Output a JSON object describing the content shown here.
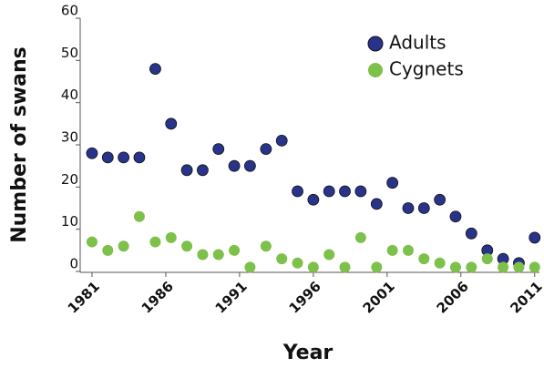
{
  "chart_data": {
    "type": "scatter",
    "x_label": "Year",
    "y_label": "Number of swans",
    "x": [
      1981,
      1982.07,
      1983.14,
      1984.21,
      1985.29,
      1986.36,
      1987.43,
      1988.5,
      1989.57,
      1990.64,
      1991.71,
      1992.79,
      1993.86,
      1994.93,
      1996,
      1997.07,
      1998.14,
      1999.21,
      2000.29,
      2001.36,
      2002.43,
      2003.5,
      2004.57,
      2005.64,
      2006.71,
      2007.79,
      2008.86,
      2009.93,
      2011
    ],
    "series": [
      {
        "name": "Adults",
        "color": "#28338a",
        "values": [
          28,
          27,
          27,
          27,
          48,
          35,
          24,
          24,
          29,
          25,
          25,
          29,
          31,
          19,
          17,
          19,
          19,
          19,
          16,
          21,
          15,
          15,
          17,
          13,
          9,
          5,
          3,
          2,
          8
        ]
      },
      {
        "name": "Cygnets",
        "color": "#7dc04a",
        "values": [
          7,
          5,
          6,
          13,
          7,
          8,
          6,
          4,
          4,
          5,
          1,
          6,
          3,
          2,
          1,
          4,
          1,
          8,
          1,
          5,
          5,
          3,
          2,
          1,
          1,
          3,
          1,
          1,
          1
        ]
      }
    ],
    "xlim": [
      1980.2,
      2011.2
    ],
    "xticks": [
      1981,
      1986,
      1991,
      1996,
      2001,
      2006,
      2011
    ],
    "ylim": [
      0,
      60
    ],
    "yticks": [
      0,
      10,
      20,
      30,
      40,
      50,
      60
    ],
    "legend": "upper right"
  }
}
